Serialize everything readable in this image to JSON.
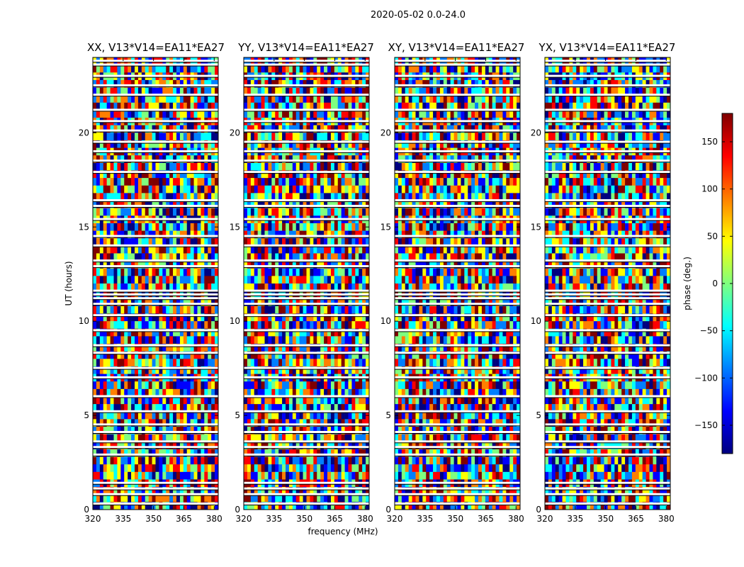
{
  "figure": {
    "title": "2020-05-02 0.0-24.0"
  },
  "chart_data": {
    "type": "heatmap",
    "panels": [
      {
        "name": "XX, V13*V14=EA11*EA27",
        "pol": "XX"
      },
      {
        "name": "YY, V13*V14=EA11*EA27",
        "pol": "YY"
      },
      {
        "name": "XY, V13*V14=EA11*EA27",
        "pol": "XY"
      },
      {
        "name": "YX, V13*V14=EA11*EA27",
        "pol": "YX"
      }
    ],
    "xlabel": "frequency (MHz)",
    "ylabel": "UT (hours)",
    "xlim": [
      320,
      382
    ],
    "ylim": [
      0,
      24
    ],
    "xticks": [
      320,
      335,
      350,
      365,
      380
    ],
    "yticks": [
      0,
      5,
      10,
      15,
      20
    ],
    "colorbar": {
      "label": "phase (deg.)",
      "range": [
        -180,
        180
      ],
      "ticks": [
        150,
        100,
        50,
        0,
        -50,
        -100,
        -150
      ],
      "tick_labels": [
        "150",
        "100",
        "50",
        "0",
        "−50",
        "−100",
        "−150"
      ],
      "colormap": "jet",
      "colors": [
        "#00007f",
        "#0000ff",
        "#007fff",
        "#00ffff",
        "#7fff7f",
        "#ffff00",
        "#ff7f00",
        "#ff0000",
        "#7f0000"
      ]
    },
    "flagged_rows_ut": [
      0.3,
      0.8,
      1.1,
      1.4,
      2.9,
      3.3,
      3.6,
      4.1,
      4.5,
      5.2,
      6.0,
      7.0,
      7.5,
      8.3,
      8.7,
      9.5,
      10.3,
      10.9,
      11.2,
      11.4,
      11.6,
      12.9,
      13.2,
      14.0,
      14.5,
      15.4,
      16.1,
      16.4,
      17.9,
      18.5,
      19.0,
      19.5,
      20.1,
      20.6,
      21.2,
      22.0,
      22.5,
      23.0,
      23.6,
      23.8
    ]
  }
}
